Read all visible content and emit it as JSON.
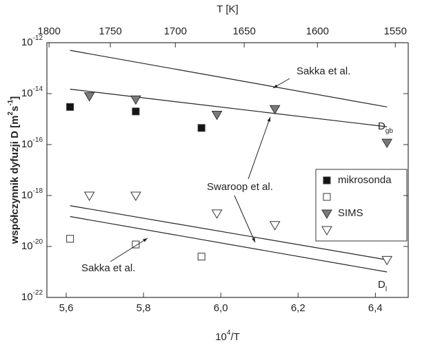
{
  "chart_data": {
    "type": "scatter",
    "xlabel": {
      "base": "10",
      "sup": "4",
      "rest": "/T"
    },
    "ylabel": {
      "a": "współczynnik dyfuzji D [m",
      "sup1": "2",
      "b": "s",
      "sup2": "-1",
      "c": "]"
    },
    "x2label": "T [K]",
    "xlim": [
      5.55,
      6.485
    ],
    "xticks": [
      {
        "value": 5.6,
        "label": "5,6"
      },
      {
        "value": 5.8,
        "label": "5,8"
      },
      {
        "value": 6.0,
        "label": "6,0"
      },
      {
        "value": 6.2,
        "label": "6,2"
      },
      {
        "value": 6.4,
        "label": "6,4"
      }
    ],
    "x2ticks": [
      1800,
      1750,
      1700,
      1650,
      1600,
      1550
    ],
    "ylim": [
      1e-22,
      1e-12
    ],
    "yscale": "log",
    "yticks": [
      {
        "value": 1e-12,
        "label": "10",
        "sup": "-12"
      },
      {
        "value": 1e-14,
        "label": "10",
        "sup": "-14"
      },
      {
        "value": 1e-16,
        "label": "10",
        "sup": "-16"
      },
      {
        "value": 1e-18,
        "label": "10",
        "sup": "-18"
      },
      {
        "value": 1e-20,
        "label": "10",
        "sup": "-20"
      },
      {
        "value": 1e-22,
        "label": "10",
        "sup": "-22"
      }
    ],
    "series": [
      {
        "name": "mikrosonda",
        "marker": "square",
        "filled": true,
        "color": "#151515",
        "x": [
          5.61,
          5.78,
          5.95
        ],
        "values": [
          3e-15,
          2e-15,
          4.5e-16
        ]
      },
      {
        "name": null,
        "marker": "square",
        "filled": false,
        "color": "#333333",
        "x": [
          5.61,
          5.78,
          5.95
        ],
        "values": [
          2e-20,
          1.2e-20,
          4e-21
        ]
      },
      {
        "name": "SIMS",
        "marker": "triangle",
        "filled": true,
        "color": "#7a7a7a",
        "x": [
          5.66,
          5.78,
          5.99,
          6.14,
          6.43
        ],
        "values": [
          8e-15,
          6e-15,
          1.5e-15,
          2.5e-15,
          1.2e-16
        ]
      },
      {
        "name": null,
        "marker": "triangle",
        "filled": false,
        "color": "#333333",
        "x": [
          5.66,
          5.78,
          5.99,
          6.14,
          6.43
        ],
        "values": [
          1e-18,
          1e-18,
          2e-19,
          7e-20,
          3e-21
        ]
      }
    ],
    "lines": [
      {
        "x": [
          5.61,
          6.43
        ],
        "values": [
          5e-13,
          3e-15
        ]
      },
      {
        "x": [
          5.61,
          6.43
        ],
        "values": [
          1.5e-14,
          5e-16
        ]
      },
      {
        "x": [
          5.61,
          6.43
        ],
        "values": [
          4e-19,
          3e-21
        ]
      },
      {
        "x": [
          5.61,
          6.43
        ],
        "values": [
          1.5e-19,
          1e-21
        ]
      }
    ],
    "annotations": [
      {
        "text": "Sakka et al."
      },
      {
        "text": "D",
        "sub": "gb"
      },
      {
        "text": "Swaroop et al."
      },
      {
        "text": "Sakka et al."
      },
      {
        "text": "D",
        "sub": "l"
      }
    ]
  }
}
